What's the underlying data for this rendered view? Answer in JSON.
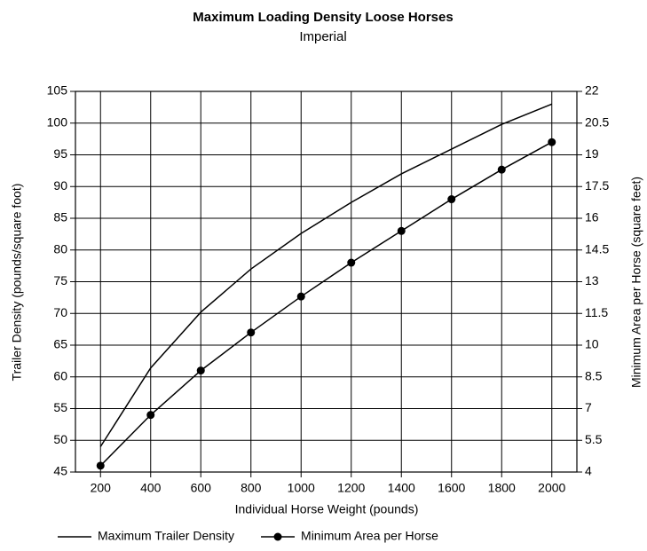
{
  "chart_data": {
    "type": "line",
    "title": "Maximum Loading Density Loose Horses",
    "subtitle": "Imperial",
    "xlabel": "Individual Horse Weight (pounds)",
    "ylabel": "Trailer Density (pounds/square foot)",
    "y2label": "Minimum Area per Horse (square feet)",
    "x": [
      200,
      400,
      600,
      800,
      1000,
      1200,
      1400,
      1600,
      1800,
      2000
    ],
    "xlim": [
      100,
      2100
    ],
    "xticks": [
      200,
      400,
      600,
      800,
      1000,
      1200,
      1400,
      1600,
      1800,
      2000
    ],
    "ylim": [
      45,
      105
    ],
    "yticks": [
      45,
      50,
      55,
      60,
      65,
      70,
      75,
      80,
      85,
      90,
      95,
      100,
      105
    ],
    "y2lim": [
      4,
      22
    ],
    "y2ticks": [
      4,
      5.5,
      7,
      8.5,
      10,
      11.5,
      13,
      14.5,
      16,
      17.5,
      19,
      20.5,
      22
    ],
    "grid": true,
    "legend": "bottom",
    "series": [
      {
        "name": "Maximum Trailer Density",
        "color": "#000000",
        "marker": "none",
        "values": [
          49,
          61.4,
          70.2,
          77,
          82.6,
          87.5,
          92,
          95.9,
          99.8,
          103
        ]
      },
      {
        "name": "Minimum Area per Horse",
        "color": "#000000",
        "marker": "circle",
        "axis": "y2",
        "values": [
          4.3,
          6.7,
          8.8,
          10.6,
          12.3,
          13.9,
          15.4,
          16.9,
          18.3,
          19.6
        ]
      }
    ]
  }
}
